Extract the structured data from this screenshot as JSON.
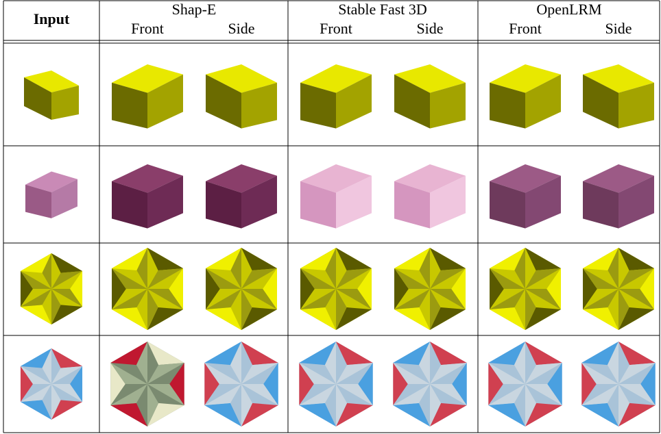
{
  "header": {
    "input": "Input",
    "groups": [
      {
        "name": "Shap-E",
        "views": [
          "Front",
          "Side"
        ]
      },
      {
        "name": "Stable Fast 3D",
        "views": [
          "Front",
          "Side"
        ]
      },
      {
        "name": "OpenLRM",
        "views": [
          "Front",
          "Side"
        ]
      }
    ]
  }
}
